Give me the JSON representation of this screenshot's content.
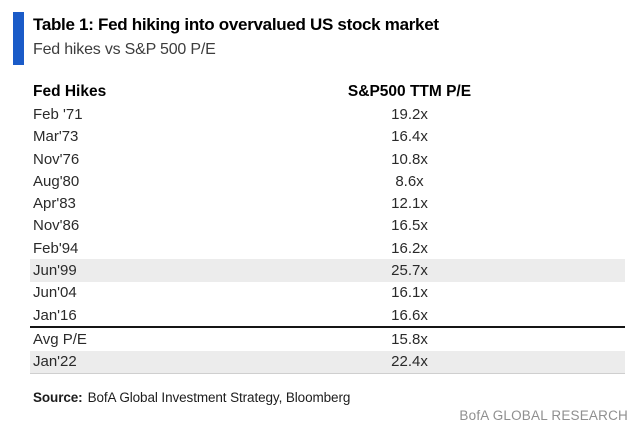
{
  "header": {
    "title": "Table 1: Fed hiking into overvalued US stock market",
    "subtitle": "Fed hikes vs S&P 500 P/E"
  },
  "table": {
    "columns": [
      "Fed Hikes",
      "S&P500 TTM P/E"
    ],
    "rows": [
      [
        "Feb '71",
        "19.2x"
      ],
      [
        "Mar'73",
        "16.4x"
      ],
      [
        "Nov'76",
        "10.8x"
      ],
      [
        "Aug'80",
        "8.6x"
      ],
      [
        "Apr'83",
        "12.1x"
      ],
      [
        "Nov'86",
        "16.5x"
      ],
      [
        "Feb'94",
        "16.2x"
      ],
      [
        "Jun'99",
        "25.7x"
      ],
      [
        "Jun'04",
        "16.1x"
      ],
      [
        "Jan'16",
        "16.6x"
      ],
      [
        "Avg P/E",
        "15.8x"
      ],
      [
        "Jan'22",
        "22.4x"
      ]
    ]
  },
  "chart_data": {
    "type": "table",
    "title": "Table 1: Fed hiking into overvalued US stock market",
    "subtitle": "Fed hikes vs S&P 500 P/E",
    "columns": [
      "Fed Hikes",
      "S&P500 TTM P/E"
    ],
    "categories": [
      "Feb '71",
      "Mar'73",
      "Nov'76",
      "Aug'80",
      "Apr'83",
      "Nov'86",
      "Feb'94",
      "Jun'99",
      "Jun'04",
      "Jan'16",
      "Avg P/E",
      "Jan'22"
    ],
    "values": [
      19.2,
      16.4,
      10.8,
      8.6,
      12.1,
      16.5,
      16.2,
      25.7,
      16.1,
      16.6,
      15.8,
      22.4
    ],
    "value_suffix": "x",
    "highlighted_rows": [
      "Jun'99",
      "Jan'22"
    ],
    "separator_after_row": "Jan'16",
    "legend_position": "none",
    "grid": false
  },
  "footer": {
    "source_label": "Source:",
    "source_text": "BofA Global Investment Strategy, Bloomberg",
    "brand": "BofA GLOBAL RESEARCH"
  },
  "colors": {
    "accent_blue": "#1a5bc8",
    "row_highlight": "#ececec",
    "brand_gray": "#8f8f8f"
  }
}
